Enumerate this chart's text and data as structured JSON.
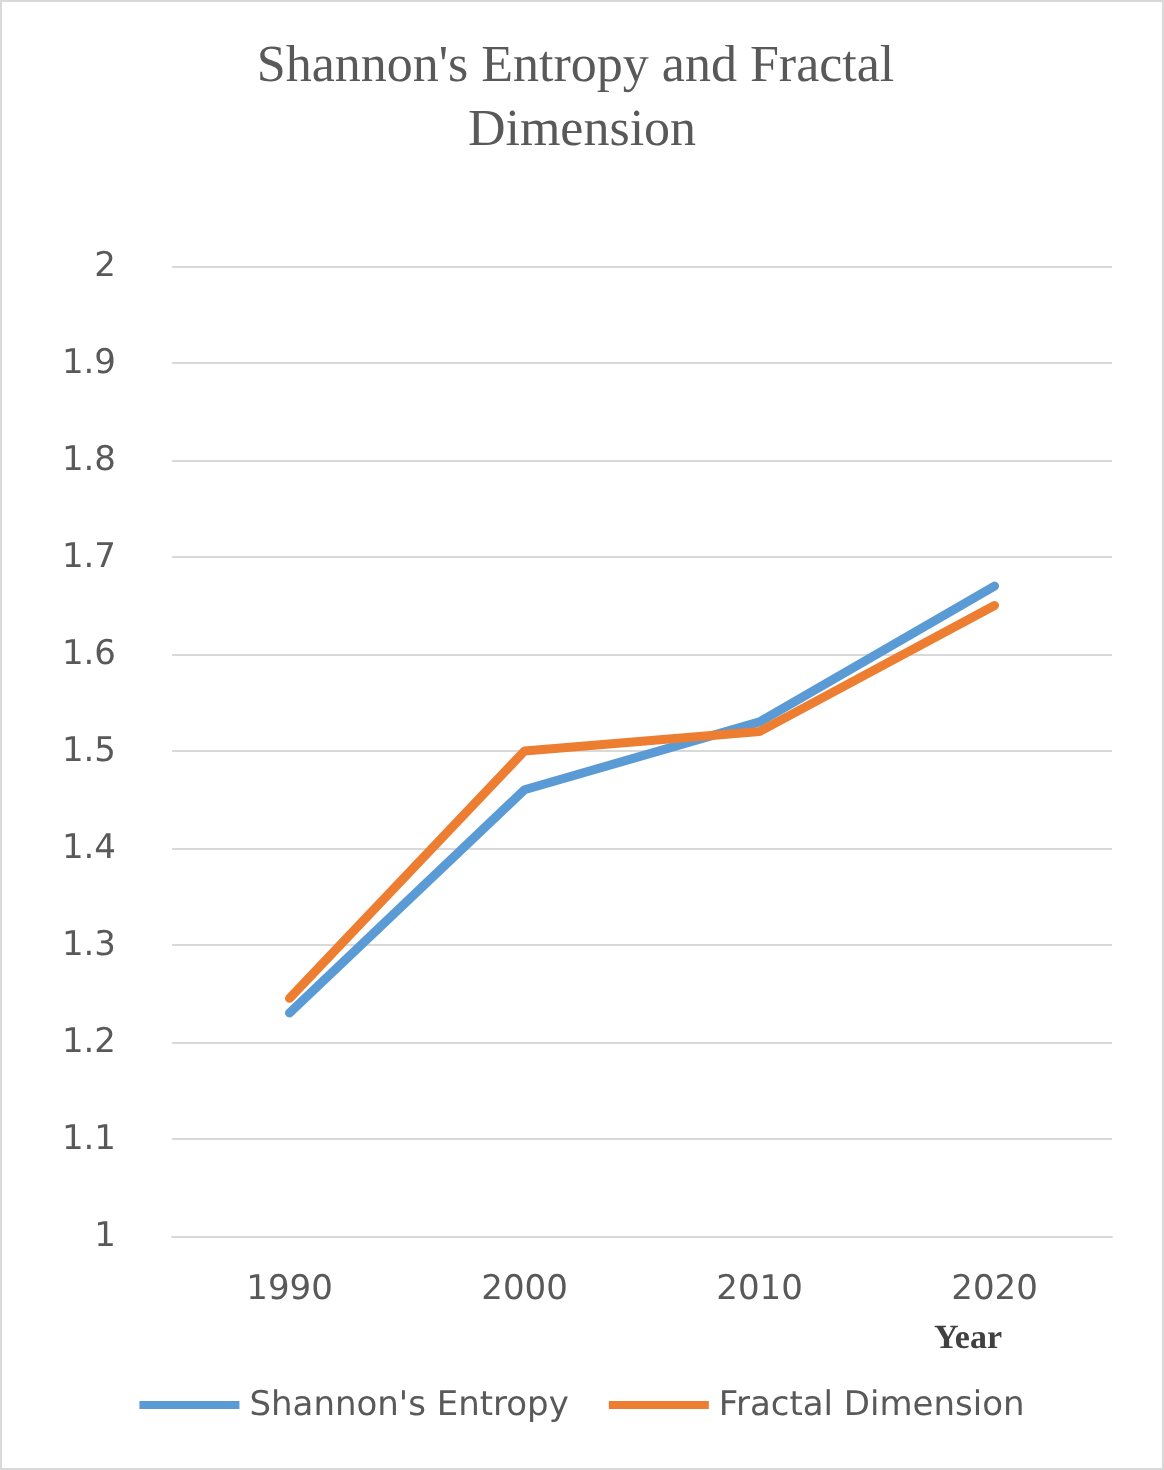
{
  "chart_data": {
    "type": "line",
    "title": "Shannon's Entropy and Fractal Dimension",
    "xlabel": "Year",
    "categories": [
      "1990",
      "2000",
      "2010",
      "2020"
    ],
    "series": [
      {
        "name": "Shannon's Entropy",
        "color": "#5b9bd5",
        "values": [
          1.23,
          1.46,
          1.53,
          1.67
        ]
      },
      {
        "name": "Fractal Dimension",
        "color": "#ed7d31",
        "values": [
          1.245,
          1.5,
          1.52,
          1.65
        ]
      }
    ],
    "ylim": [
      1,
      2
    ],
    "yticks": [
      1,
      1.1,
      1.2,
      1.3,
      1.4,
      1.5,
      1.6,
      1.7,
      1.8,
      1.9,
      2
    ],
    "grid": "y",
    "legend": "bottom",
    "marker": "none",
    "line_style": "solid"
  }
}
